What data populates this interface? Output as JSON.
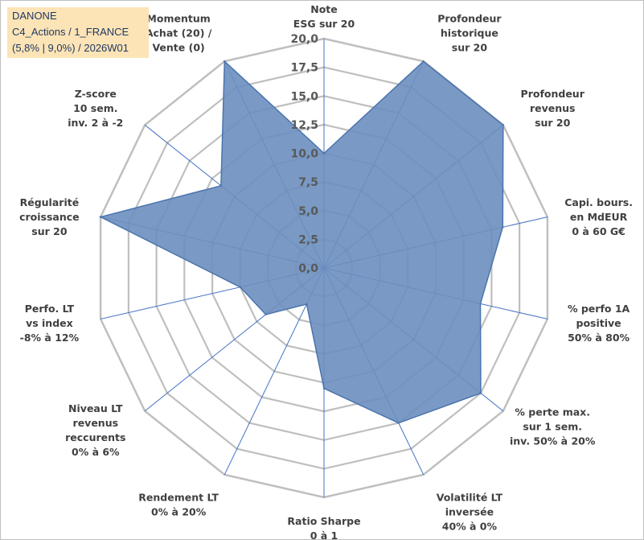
{
  "header": {
    "lines": [
      "DANONE",
      "C4_Actions / 1_FRANCE",
      "(5,8% | 9,0%) / 2026W01"
    ]
  },
  "chart_data": {
    "type": "radar",
    "title": "DANONE",
    "axis": {
      "min": 0,
      "max": 20,
      "step": 2.5,
      "tick_labels": [
        "0,0",
        "2,5",
        "5,0",
        "7,5",
        "10,0",
        "12,5",
        "15,0",
        "17,5",
        "20,0"
      ]
    },
    "categories": [
      [
        "Note",
        "ESG sur 20"
      ],
      [
        "Profondeur",
        "historique",
        "sur 20"
      ],
      [
        "Profondeur",
        "revenus",
        "sur 20"
      ],
      [
        "Capi. bours.",
        "en MdEUR",
        "0 à 60 G€"
      ],
      [
        "% perfo 1A",
        "positive",
        "50% à 80%"
      ],
      [
        "% perte max.",
        "sur 1 sem.",
        "inv. 50% à 20%"
      ],
      [
        "Volatilité LT",
        "inversée",
        "40% à 0%"
      ],
      [
        "Ratio Sharpe",
        "0 à 1"
      ],
      [
        "Rendement LT",
        "0% à 20%"
      ],
      [
        "Niveau LT",
        "revenus",
        "reccurents",
        "0% à 6%"
      ],
      [
        "Perfo. LT",
        "vs index",
        "-8% à 12%"
      ],
      [
        "Régularité",
        "croissance",
        "sur 20"
      ],
      [
        "Z-score",
        "10 sem.",
        "inv. 2 à -2"
      ],
      [
        "Momentum",
        "Achat (20) /",
        "Vente (0)"
      ]
    ],
    "series": [
      {
        "name": "DANONE",
        "values": [
          10.0,
          20.0,
          20.0,
          16.0,
          14.0,
          17.5,
          15.0,
          10.5,
          3.5,
          6.5,
          7.5,
          20.0,
          11.5,
          20.0
        ],
        "fill": "#6b8fbf",
        "stroke": "#4a74ae"
      }
    ],
    "grid_color": "#bfbfbf",
    "spoke_color": "#4472c4"
  }
}
